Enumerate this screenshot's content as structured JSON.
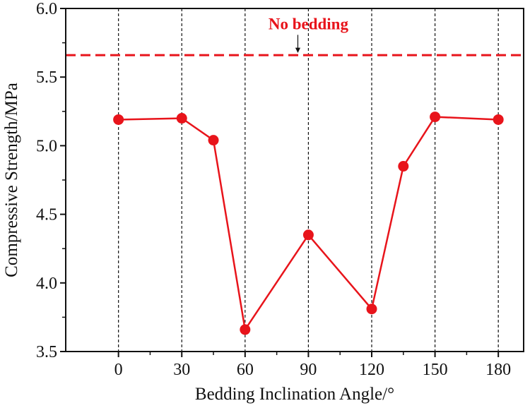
{
  "chart_data": {
    "type": "line",
    "title": "",
    "xlabel": "Bedding Inclination Angle/°",
    "ylabel": "Compressive Strength/MPa",
    "xlim": [
      -25,
      192
    ],
    "ylim": [
      3.5,
      6.0
    ],
    "xticks": [
      0,
      30,
      60,
      90,
      120,
      150,
      180
    ],
    "xtick_labels": [
      "0",
      "30",
      "60",
      "90",
      "120",
      "150",
      "180"
    ],
    "yticks": [
      3.5,
      4.0,
      4.5,
      5.0,
      5.5,
      6.0
    ],
    "ytick_labels": [
      "3.5",
      "4.0",
      "4.5",
      "5.0",
      "5.5",
      "6.0"
    ],
    "vertical_gridlines": [
      0,
      30,
      60,
      90,
      120,
      150,
      180
    ],
    "grid": "vertical dashed at major x ticks",
    "series": [
      {
        "x": [
          0,
          30,
          45,
          60,
          90,
          120,
          135,
          150,
          180
        ],
        "y": [
          5.19,
          5.2,
          5.04,
          3.66,
          4.35,
          3.81,
          4.85,
          5.21,
          5.19
        ],
        "color": "#e8141b",
        "marker": "circle"
      }
    ],
    "reference_line": {
      "y": 5.66,
      "style": "dashed",
      "color": "#e8141b"
    },
    "annotations": [
      {
        "text": "No bedding",
        "x": 90,
        "y": 5.89,
        "arrow_to": {
          "x": 85,
          "y": 5.66
        }
      }
    ]
  }
}
